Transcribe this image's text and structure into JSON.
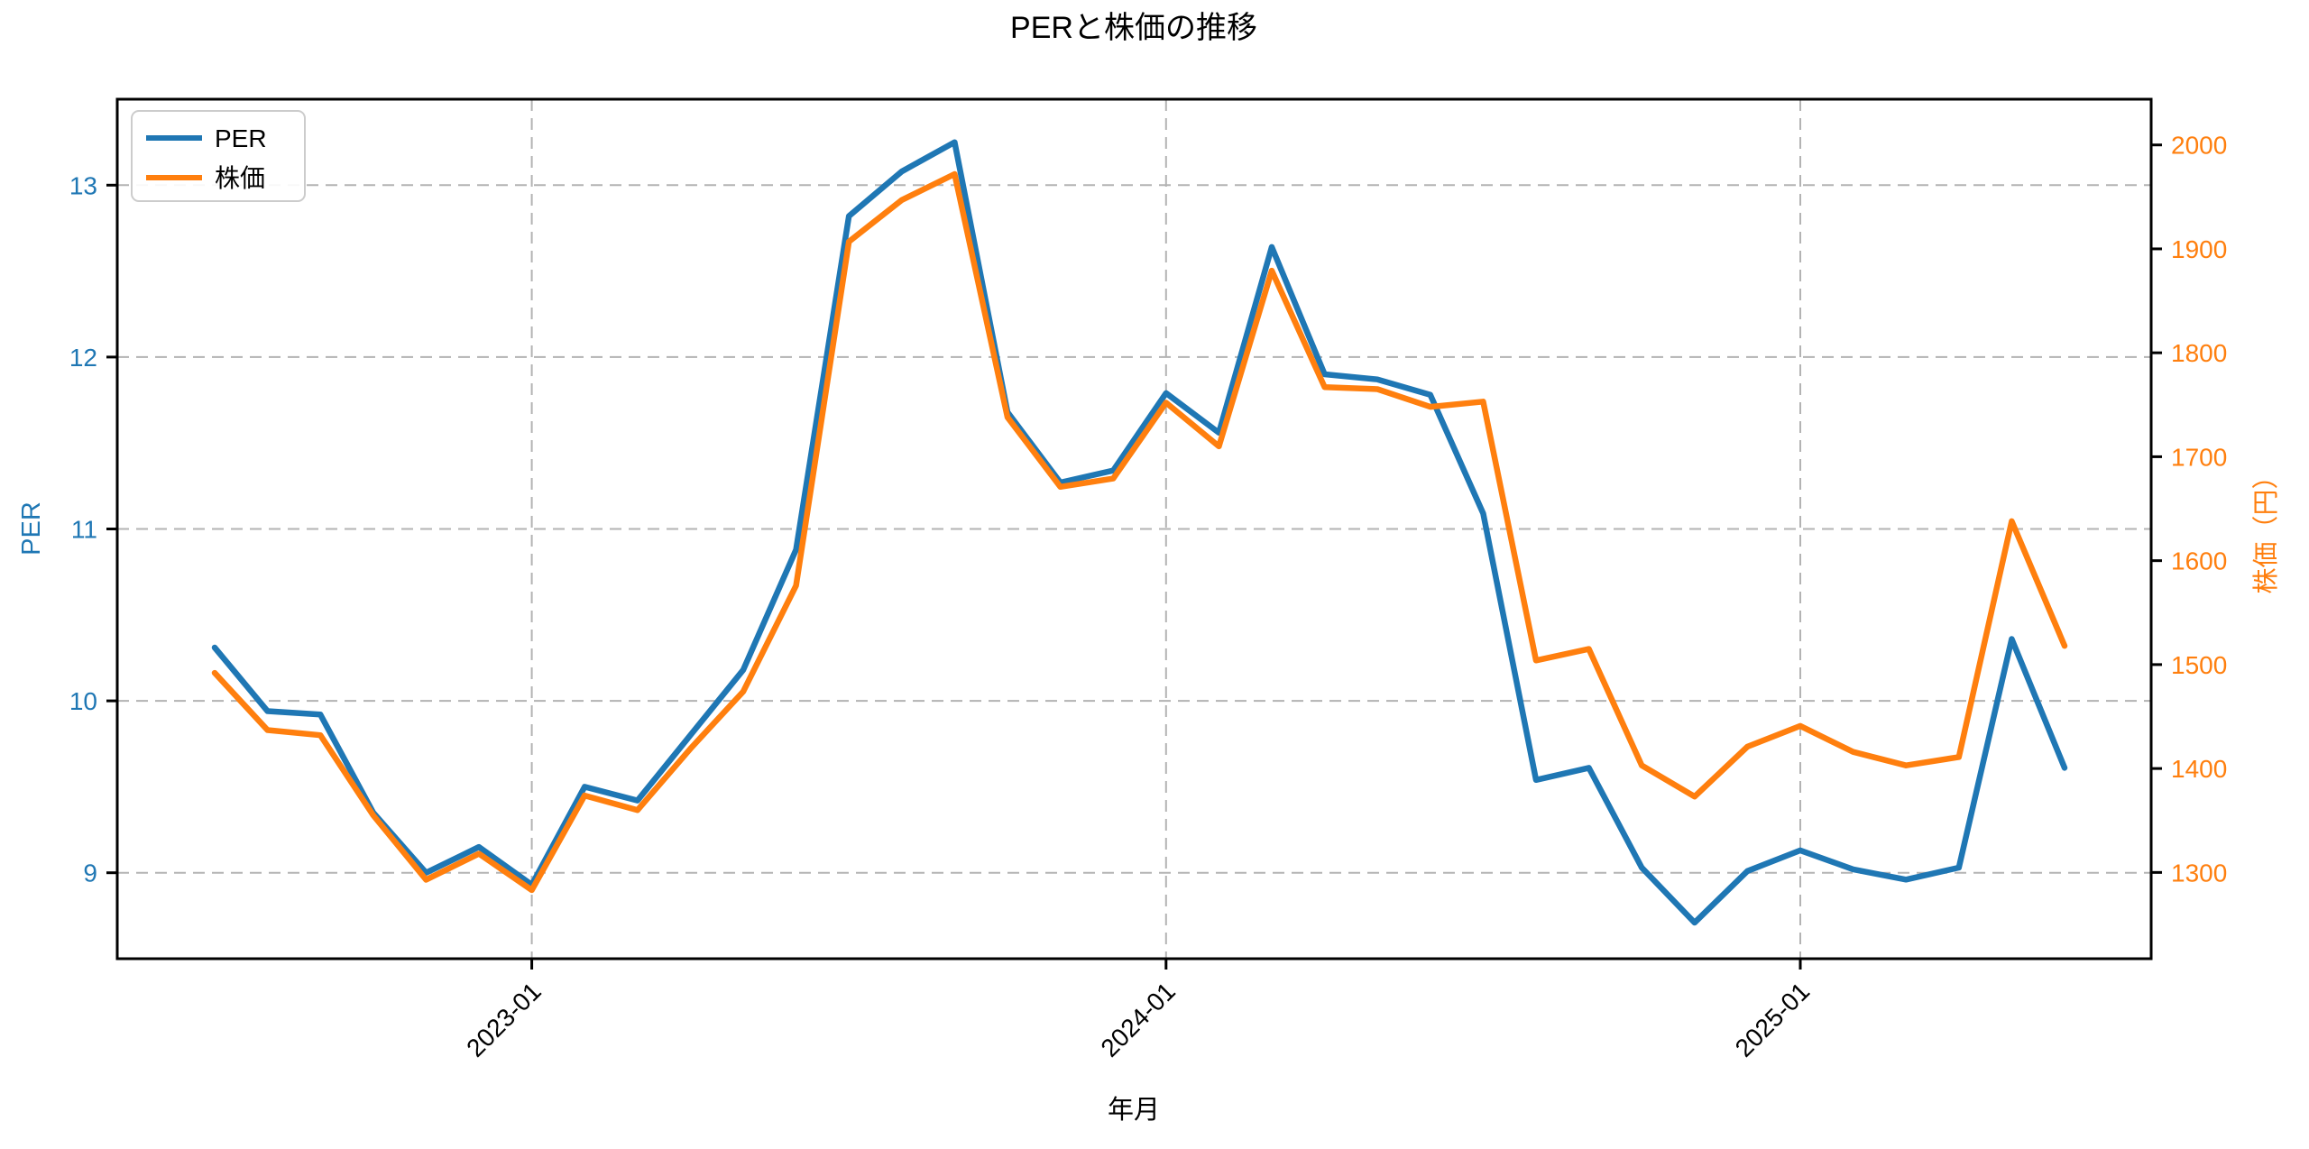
{
  "title": "PERと株価の推移",
  "legend": {
    "position": "upper-left",
    "items": [
      {
        "label": "PER"
      },
      {
        "label": "株価"
      }
    ]
  },
  "chart_data": {
    "type": "line",
    "title": "PERと株価の推移",
    "xlabel": "年月",
    "grid": true,
    "x": [
      "2022-07",
      "2022-08",
      "2022-09",
      "2022-10",
      "2022-11",
      "2022-12",
      "2023-01",
      "2023-02",
      "2023-03",
      "2023-04",
      "2023-05",
      "2023-06",
      "2023-07",
      "2023-08",
      "2023-09",
      "2023-10",
      "2023-11",
      "2023-12",
      "2024-01",
      "2024-02",
      "2024-03",
      "2024-04",
      "2024-05",
      "2024-06",
      "2024-07",
      "2024-08",
      "2024-09",
      "2024-10",
      "2024-11",
      "2024-12",
      "2025-01",
      "2025-02",
      "2025-03",
      "2025-04",
      "2025-05",
      "2025-06"
    ],
    "x_tick_labels": [
      "2023-01",
      "2024-01",
      "2025-01"
    ],
    "x_tick_indices": [
      6,
      18,
      30
    ],
    "x_tick_rotation_deg": 45,
    "left_axis": {
      "label": "PER",
      "color": "#1f77b4",
      "ticks": [
        9,
        10,
        11,
        12,
        13
      ],
      "lim": [
        8.5,
        13.5
      ]
    },
    "right_axis": {
      "label": "株価（円）",
      "color": "#ff7f0e",
      "ticks": [
        1300,
        1400,
        1500,
        1600,
        1700,
        1800,
        1900,
        2000
      ],
      "lim": [
        1217,
        2044
      ]
    },
    "series": [
      {
        "name": "PER",
        "axis": "left",
        "color": "#1f77b4",
        "values": [
          10.31,
          9.94,
          9.92,
          9.35,
          9.0,
          9.15,
          8.93,
          9.5,
          9.42,
          9.8,
          10.18,
          10.88,
          12.82,
          13.08,
          13.25,
          11.68,
          11.27,
          11.34,
          11.79,
          11.56,
          12.64,
          11.9,
          11.87,
          11.78,
          11.09,
          9.54,
          9.61,
          9.03,
          8.71,
          9.01,
          9.13,
          9.02,
          8.96,
          9.03,
          10.36,
          9.61
        ]
      },
      {
        "name": "株価",
        "axis": "right",
        "color": "#ff7f0e",
        "values": [
          1492,
          1437,
          1432,
          1355,
          1293,
          1318,
          1283,
          1374,
          1360,
          1419,
          1474,
          1576,
          1907,
          1947,
          1972,
          1738,
          1671,
          1679,
          1752,
          1710,
          1879,
          1767,
          1765,
          1748,
          1753,
          1504,
          1515,
          1403,
          1373,
          1421,
          1441,
          1416,
          1403,
          1411,
          1638,
          1518
        ]
      }
    ]
  },
  "colors": {
    "background": "#ffffff",
    "spine": "#000000",
    "grid": "#b3b3b3",
    "per_line": "#1f77b4",
    "price_line": "#ff7f0e"
  }
}
